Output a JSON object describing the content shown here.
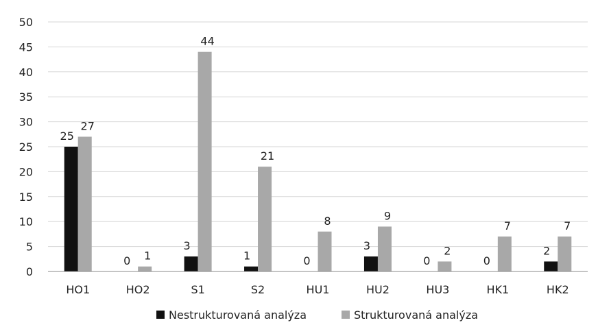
{
  "chart_data": {
    "type": "bar",
    "categories": [
      "HO1",
      "HO2",
      "S1",
      "S2",
      "HU1",
      "HU2",
      "HU3",
      "HK1",
      "HK2"
    ],
    "series": [
      {
        "name": "Nestrukturovaná analýza",
        "values": [
          25,
          0,
          3,
          1,
          0,
          3,
          0,
          0,
          2
        ],
        "color": "#111111"
      },
      {
        "name": "Strukturovaná analýza",
        "values": [
          27,
          1,
          44,
          21,
          8,
          9,
          2,
          7,
          7
        ],
        "color": "#a8a8a8"
      }
    ],
    "ylim": [
      0,
      50
    ],
    "yticks": [
      0,
      5,
      10,
      15,
      20,
      25,
      30,
      35,
      40,
      45,
      50
    ],
    "grid": true,
    "legend_position": "bottom",
    "data_labels": true
  }
}
